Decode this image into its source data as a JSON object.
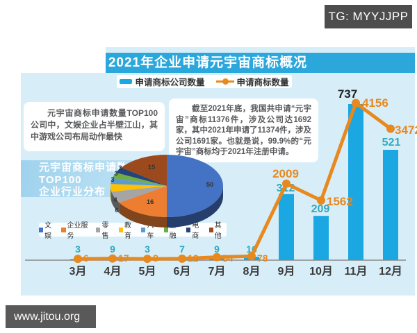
{
  "badges": {
    "tg_label": "TG: MYYJJPP",
    "watermark": "www.jitou.org"
  },
  "header": {
    "title": "2021年企业申请元宇宙商标概况"
  },
  "legend": {
    "company": "申请商标公司数量",
    "trademark": "申请商标数量"
  },
  "callouts": {
    "left": "元宇宙商标申请数量TOP100公司中，文娱企业占半壁江山，其中游戏公司布局动作最快",
    "right": "截至2021年底，我国共申请“元宇宙”商标11376件，涉及公司达1692家，其中2021年申请了11374件，涉及公司1691家。也就是说，99.9%的“元宇宙”商标均于2021年注册申请。"
  },
  "pie_box": {
    "line1": "元宇宙商标申请数",
    "line2": "TOP100",
    "line3": "企业行业分布"
  },
  "colors": {
    "panel": "#d7eef9",
    "title_bar": "#2ba7dc",
    "bar": "#1ba7e2",
    "line": "#e8891f",
    "value_label": "#2fa9bd",
    "max_bar_label": "#222222",
    "month_label": "#3a3a3a"
  },
  "chart_data": [
    {
      "type": "combo-bar-line",
      "title": "2021年企业申请元宇宙商标概况",
      "categories": [
        "3月",
        "4月",
        "5月",
        "6月",
        "7月",
        "8月",
        "9月",
        "10月",
        "11月",
        "12月"
      ],
      "series": [
        {
          "name": "申请商标公司数量",
          "kind": "bar",
          "color": "#1ba7e2",
          "values": [
            3,
            9,
            3,
            7,
            9,
            16,
            312,
            209,
            737,
            521
          ]
        },
        {
          "name": "申请商标数量",
          "kind": "line",
          "color": "#e8891f",
          "values": [
            6,
            17,
            8,
            12,
            54,
            78,
            2009,
            1562,
            4156,
            3472
          ]
        }
      ],
      "ylim": [
        0,
        4156
      ],
      "grid": false,
      "legend_position": "top"
    },
    {
      "type": "pie",
      "title": "元宇宙商标申请数TOP100企业行业分布",
      "labels": [
        "文娱",
        "企业服务",
        "零售",
        "教育",
        "汽车",
        "金融",
        "电商",
        "其他"
      ],
      "values": [
        50,
        16,
        6,
        4,
        3,
        3,
        3,
        15
      ],
      "colors": [
        "#4472c4",
        "#ed7d31",
        "#a5a5a5",
        "#ffc000",
        "#5b9bd5",
        "#70ad47",
        "#264478",
        "#9c4a1d"
      ],
      "legend_position": "bottom"
    }
  ]
}
